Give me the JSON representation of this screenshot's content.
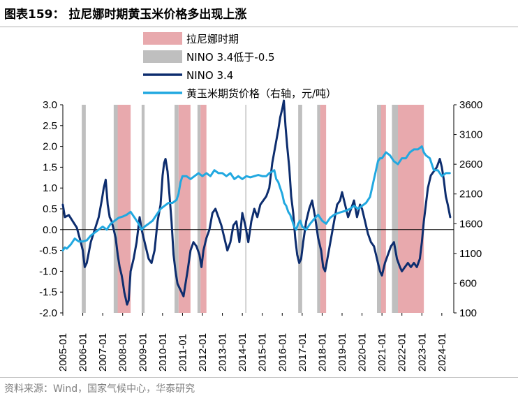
{
  "title": "图表159： 拉尼娜时期黄玉米价格多出现上涨",
  "source": "资料来源：Wind，国家气候中心，华泰研究",
  "chart_data": {
    "type": "line",
    "legend": {
      "placement": "top",
      "items": [
        {
          "label": "拉尼娜时期",
          "kind": "band",
          "color": "#e8a9ad"
        },
        {
          "label": "NINO 3.4低于-0.5",
          "kind": "band",
          "color": "#bfbfbf"
        },
        {
          "label": "NINO 3.4",
          "kind": "line",
          "color": "#0d2d6e"
        },
        {
          "label": "黄玉米期货价格（右轴，元/吨）",
          "kind": "line",
          "color": "#21a8e0"
        }
      ]
    },
    "left_axis": {
      "min": -2.0,
      "max": 3.0,
      "ticks": [
        "-2.0",
        "-1.5",
        "-1.0",
        "-0.5",
        "0.0",
        "0.5",
        "1.0",
        "1.5",
        "2.0",
        "2.5",
        "3.0"
      ]
    },
    "right_axis": {
      "min": 100,
      "max": 3600,
      "ticks": [
        "100",
        "600",
        "1100",
        "1600",
        "2100",
        "2600",
        "3100",
        "3600"
      ]
    },
    "x_axis": {
      "start": 2005.0,
      "end": 2024.6,
      "ticks": [
        "2005-01",
        "2006-01",
        "2007-01",
        "2008-01",
        "2009-01",
        "2010-01",
        "2011-01",
        "2012-01",
        "2013-01",
        "2014-01",
        "2015-01",
        "2016-01",
        "2017-01",
        "2018-01",
        "2019-01",
        "2020-01",
        "2021-01",
        "2022-01",
        "2023-01",
        "2024-01"
      ]
    },
    "la_nina_periods": [
      [
        2007.7,
        2008.4
      ],
      [
        2010.8,
        2011.4
      ],
      [
        2011.9,
        2012.2
      ],
      [
        2017.9,
        2018.2
      ],
      [
        2020.9,
        2021.2
      ],
      [
        2021.8,
        2023.1
      ]
    ],
    "below_threshold_periods": [
      [
        2005.95,
        2006.15
      ],
      [
        2007.55,
        2007.75
      ],
      [
        2008.95,
        2009.1
      ],
      [
        2010.6,
        2010.8
      ],
      [
        2011.75,
        2011.9
      ],
      [
        2014.15,
        2014.2
      ],
      [
        2016.8,
        2017.0
      ],
      [
        2017.75,
        2017.9
      ],
      [
        2020.75,
        2020.95
      ],
      [
        2021.5,
        2021.8
      ]
    ],
    "series": [
      {
        "name": "NINO 3.4",
        "axis": "left",
        "color": "#0d2d6e",
        "x": [
          2005.0,
          2005.1,
          2005.3,
          2005.5,
          2005.7,
          2005.9,
          2006.0,
          2006.1,
          2006.2,
          2006.4,
          2006.6,
          2006.8,
          2006.95,
          2007.05,
          2007.15,
          2007.25,
          2007.35,
          2007.45,
          2007.55,
          2007.65,
          2007.75,
          2007.85,
          2007.95,
          2008.02,
          2008.08,
          2008.15,
          2008.22,
          2008.3,
          2008.4,
          2008.55,
          2008.7,
          2008.85,
          2008.95,
          2009.05,
          2009.15,
          2009.3,
          2009.45,
          2009.6,
          2009.75,
          2009.9,
          2010.0,
          2010.08,
          2010.15,
          2010.25,
          2010.35,
          2010.45,
          2010.55,
          2010.65,
          2010.75,
          2010.85,
          2010.95,
          2011.05,
          2011.15,
          2011.25,
          2011.4,
          2011.55,
          2011.7,
          2011.85,
          2011.95,
          2012.05,
          2012.2,
          2012.35,
          2012.5,
          2012.65,
          2012.8,
          2012.95,
          2013.1,
          2013.25,
          2013.4,
          2013.55,
          2013.7,
          2013.85,
          2014.0,
          2014.15,
          2014.3,
          2014.45,
          2014.6,
          2014.75,
          2014.9,
          2015.05,
          2015.2,
          2015.35,
          2015.5,
          2015.65,
          2015.8,
          2015.9,
          2016.0,
          2016.08,
          2016.16,
          2016.25,
          2016.35,
          2016.45,
          2016.55,
          2016.65,
          2016.75,
          2016.85,
          2016.95,
          2017.05,
          2017.2,
          2017.35,
          2017.5,
          2017.65,
          2017.8,
          2017.95,
          2018.05,
          2018.15,
          2018.3,
          2018.45,
          2018.6,
          2018.75,
          2018.9,
          2019.0,
          2019.15,
          2019.3,
          2019.45,
          2019.6,
          2019.75,
          2019.9,
          2020.0,
          2020.15,
          2020.3,
          2020.45,
          2020.6,
          2020.7,
          2020.8,
          2020.9,
          2021.0,
          2021.15,
          2021.3,
          2021.45,
          2021.6,
          2021.75,
          2021.9,
          2022.0,
          2022.15,
          2022.3,
          2022.45,
          2022.6,
          2022.75,
          2022.9,
          2023.0,
          2023.1,
          2023.2,
          2023.3,
          2023.45,
          2023.6,
          2023.75,
          2023.9,
          2024.0,
          2024.1,
          2024.2,
          2024.3,
          2024.42
        ],
        "values": [
          0.6,
          0.3,
          0.35,
          0.2,
          0.05,
          -0.3,
          -0.5,
          -0.9,
          -0.8,
          -0.3,
          0.0,
          0.3,
          0.7,
          1.0,
          1.2,
          0.6,
          0.3,
          0.2,
          0.0,
          -0.2,
          -0.6,
          -0.9,
          -1.1,
          -1.3,
          -1.5,
          -1.65,
          -1.8,
          -1.7,
          -1.0,
          -0.7,
          -0.3,
          0.3,
          0.0,
          -0.2,
          -0.4,
          -0.7,
          -0.8,
          -0.5,
          0.2,
          0.6,
          1.3,
          1.6,
          1.7,
          1.4,
          0.8,
          0.2,
          -0.6,
          -1.0,
          -1.3,
          -1.4,
          -1.5,
          -1.6,
          -1.3,
          -1.0,
          -0.5,
          -0.3,
          -0.4,
          -0.6,
          -0.9,
          -0.5,
          -0.2,
          0.0,
          0.4,
          0.5,
          0.3,
          0.1,
          -0.2,
          -0.5,
          -0.3,
          0.1,
          0.2,
          -0.3,
          0.4,
          0.1,
          -0.3,
          0.2,
          0.5,
          0.3,
          0.6,
          0.7,
          0.8,
          1.0,
          1.6,
          2.0,
          2.4,
          2.7,
          2.9,
          3.1,
          2.5,
          2.0,
          1.5,
          0.8,
          0.4,
          -0.2,
          -0.6,
          -0.8,
          -0.7,
          -0.3,
          0.2,
          0.5,
          0.7,
          0.3,
          -0.2,
          -0.5,
          -0.9,
          -1.0,
          -0.6,
          -0.2,
          0.2,
          0.6,
          0.7,
          0.9,
          0.6,
          0.3,
          0.5,
          0.7,
          0.3,
          0.6,
          0.5,
          0.2,
          -0.1,
          -0.3,
          -0.4,
          -0.6,
          -0.8,
          -1.0,
          -1.1,
          -0.8,
          -0.6,
          -0.4,
          -0.3,
          -0.7,
          -0.9,
          -1.0,
          -0.9,
          -0.8,
          -0.9,
          -0.8,
          -0.9,
          -0.7,
          -0.3,
          0.2,
          0.6,
          1.0,
          1.3,
          1.4,
          1.5,
          1.7,
          1.5,
          1.2,
          0.8,
          0.6,
          0.3
        ]
      },
      {
        "name": "黄玉米期货价格（右轴，元/吨）",
        "axis": "right",
        "color": "#21a8e0",
        "x": [
          2005.0,
          2005.1,
          2005.2,
          2005.4,
          2005.6,
          2005.8,
          2006.0,
          2006.2,
          2006.4,
          2006.6,
          2006.8,
          2007.0,
          2007.2,
          2007.4,
          2007.6,
          2007.8,
          2008.0,
          2008.2,
          2008.4,
          2008.6,
          2008.8,
          2008.95,
          2009.1,
          2009.3,
          2009.5,
          2009.7,
          2009.9,
          2010.1,
          2010.3,
          2010.5,
          2010.7,
          2010.8,
          2010.9,
          2011.0,
          2011.2,
          2011.4,
          2011.6,
          2011.8,
          2012.0,
          2012.2,
          2012.4,
          2012.6,
          2012.8,
          2013.0,
          2013.2,
          2013.4,
          2013.6,
          2013.8,
          2014.0,
          2014.2,
          2014.4,
          2014.6,
          2014.8,
          2015.0,
          2015.2,
          2015.35,
          2015.5,
          2015.6,
          2015.7,
          2015.8,
          2015.9,
          2016.0,
          2016.1,
          2016.2,
          2016.3,
          2016.4,
          2016.5,
          2016.6,
          2016.7,
          2016.8,
          2016.9,
          2017.0,
          2017.2,
          2017.4,
          2017.6,
          2017.8,
          2018.0,
          2018.2,
          2018.4,
          2018.6,
          2018.8,
          2019.0,
          2019.2,
          2019.4,
          2019.6,
          2019.8,
          2020.0,
          2020.2,
          2020.4,
          2020.5,
          2020.6,
          2020.7,
          2020.8,
          2020.9,
          2021.0,
          2021.2,
          2021.4,
          2021.6,
          2021.8,
          2022.0,
          2022.2,
          2022.4,
          2022.6,
          2022.8,
          2023.0,
          2023.1,
          2023.2,
          2023.4,
          2023.6,
          2023.8,
          2024.0,
          2024.2,
          2024.4
        ],
        "values": [
          1150,
          1200,
          1180,
          1250,
          1350,
          1300,
          1300,
          1320,
          1400,
          1450,
          1500,
          1550,
          1500,
          1600,
          1650,
          1700,
          1720,
          1750,
          1800,
          1700,
          1600,
          1500,
          1550,
          1600,
          1650,
          1750,
          1850,
          1900,
          1950,
          1950,
          2000,
          2100,
          2300,
          2400,
          2400,
          2350,
          2400,
          2450,
          2400,
          2450,
          2400,
          2500,
          2450,
          2450,
          2400,
          2450,
          2350,
          2400,
          2350,
          2400,
          2380,
          2400,
          2420,
          2400,
          2400,
          2450,
          2480,
          2500,
          2350,
          2300,
          2200,
          2100,
          1950,
          1900,
          1800,
          1750,
          1650,
          1550,
          1500,
          1600,
          1650,
          1550,
          1500,
          1600,
          1680,
          1750,
          1650,
          1600,
          1700,
          1750,
          1780,
          1800,
          1820,
          1850,
          1900,
          1850,
          1900,
          1950,
          2050,
          2200,
          2350,
          2500,
          2650,
          2700,
          2700,
          2800,
          2750,
          2650,
          2600,
          2700,
          2700,
          2800,
          2850,
          2850,
          2900,
          2800,
          2750,
          2700,
          2500,
          2500,
          2400,
          2450,
          2450
        ]
      }
    ]
  }
}
